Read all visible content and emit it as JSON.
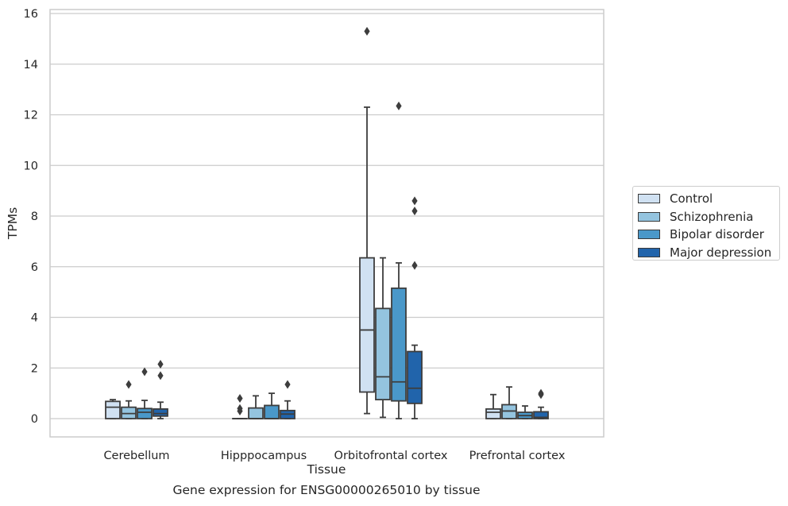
{
  "chart_data": {
    "type": "box",
    "xlabel": "Tissue",
    "ylabel": "TPMs",
    "caption": "Gene expression for ENSG00000265010 by tissue",
    "ylim": [
      -0.6,
      16.1
    ],
    "yticks": [
      0,
      2,
      4,
      6,
      8,
      10,
      12,
      14,
      16
    ],
    "grid": true,
    "legend_position": "right",
    "categories": [
      "Cerebellum",
      "Hipppocampus",
      "Orbitofrontal cortex",
      "Prefrontal cortex"
    ],
    "series": [
      {
        "name": "Control",
        "color": "#d0e1f2",
        "boxes": [
          {
            "whislo": 0,
            "q1": 0,
            "med": 0.45,
            "q3": 0.68,
            "whishi": 0.75,
            "fliers": []
          },
          {
            "whislo": 0,
            "q1": 0,
            "med": 0,
            "q3": 0,
            "whishi": 0,
            "fliers": [
              0.3,
              0.4,
              0.8
            ]
          },
          {
            "whislo": 0.2,
            "q1": 1.05,
            "med": 3.5,
            "q3": 6.35,
            "whishi": 12.3,
            "fliers": [
              15.3
            ]
          },
          {
            "whislo": 0,
            "q1": 0,
            "med": 0.25,
            "q3": 0.38,
            "whishi": 0.95,
            "fliers": []
          }
        ]
      },
      {
        "name": "Schizophrenia",
        "color": "#94c4df",
        "boxes": [
          {
            "whislo": 0,
            "q1": 0,
            "med": 0.2,
            "q3": 0.45,
            "whishi": 0.7,
            "fliers": [
              1.35
            ]
          },
          {
            "whislo": 0,
            "q1": 0,
            "med": 0,
            "q3": 0.42,
            "whishi": 0.9,
            "fliers": []
          },
          {
            "whislo": 0.05,
            "q1": 0.75,
            "med": 1.65,
            "q3": 4.35,
            "whishi": 6.35,
            "fliers": []
          },
          {
            "whislo": 0,
            "q1": 0,
            "med": 0.3,
            "q3": 0.55,
            "whishi": 1.25,
            "fliers": []
          }
        ]
      },
      {
        "name": "Bipolar disorder",
        "color": "#4a98c9",
        "boxes": [
          {
            "whislo": 0,
            "q1": 0,
            "med": 0.25,
            "q3": 0.4,
            "whishi": 0.72,
            "fliers": [
              1.85
            ]
          },
          {
            "whislo": 0,
            "q1": 0,
            "med": 0,
            "q3": 0.52,
            "whishi": 1.0,
            "fliers": []
          },
          {
            "whislo": 0,
            "q1": 0.7,
            "med": 1.45,
            "q3": 5.15,
            "whishi": 6.15,
            "fliers": [
              12.35
            ]
          },
          {
            "whislo": 0,
            "q1": 0,
            "med": 0.12,
            "q3": 0.25,
            "whishi": 0.5,
            "fliers": []
          }
        ]
      },
      {
        "name": "Major depression",
        "color": "#2164ab",
        "boxes": [
          {
            "whislo": 0,
            "q1": 0.1,
            "med": 0.2,
            "q3": 0.38,
            "whishi": 0.65,
            "fliers": [
              1.7,
              2.15
            ]
          },
          {
            "whislo": 0,
            "q1": 0,
            "med": 0.18,
            "q3": 0.32,
            "whishi": 0.7,
            "fliers": [
              1.35
            ]
          },
          {
            "whislo": 0,
            "q1": 0.6,
            "med": 1.2,
            "q3": 2.65,
            "whishi": 2.9,
            "fliers": [
              6.05,
              8.2,
              8.6
            ]
          },
          {
            "whislo": 0,
            "q1": 0,
            "med": 0.05,
            "q3": 0.27,
            "whishi": 0.45,
            "fliers": [
              0.95,
              1.0
            ]
          }
        ]
      }
    ]
  }
}
